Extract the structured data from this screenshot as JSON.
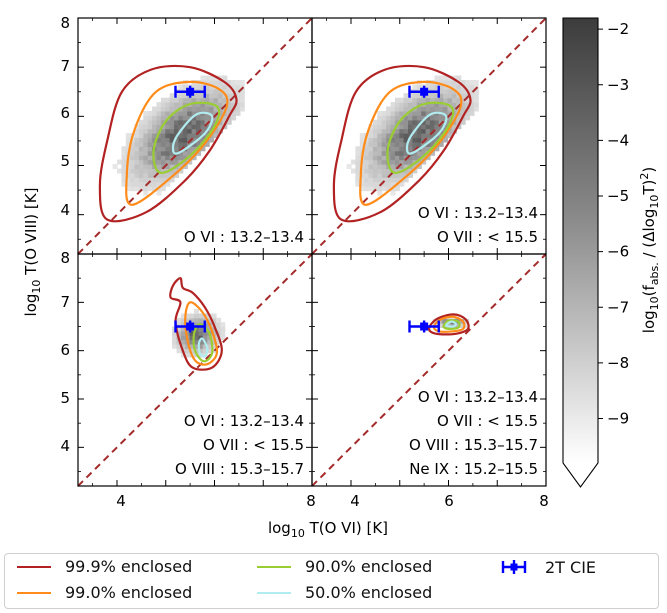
{
  "chart_data": {
    "type": "heatmap",
    "x_label_main": "log",
    "x_label_sub": "10",
    "x_label_rest": " T(O VI) [K]",
    "y_label_main": "log",
    "y_label_sub": "10",
    "y_label_rest": " T(O VIII) [K]",
    "xlim": [
      3.2,
      8.0
    ],
    "ylim": [
      3.2,
      8.0
    ],
    "x_ticks": [
      "4",
      "6",
      "8"
    ],
    "y_ticks": [
      "4",
      "5",
      "6",
      "7",
      "8"
    ],
    "panels": [
      {
        "id": "top-left",
        "annotations": [
          "O VI : 13.2–13.4"
        ],
        "cie_point": {
          "x": 5.5,
          "y": 6.5,
          "xerr": 0.3
        },
        "contours": {
          "c999": [
            [
              3.8,
              3.9
            ],
            [
              4.6,
              4.05
            ],
            [
              5.4,
              4.7
            ],
            [
              5.9,
              5.3
            ],
            [
              6.3,
              6.0
            ],
            [
              6.45,
              6.35
            ],
            [
              6.2,
              6.7
            ],
            [
              5.5,
              7.0
            ],
            [
              4.7,
              6.95
            ],
            [
              4.1,
              6.5
            ],
            [
              3.8,
              5.5
            ],
            [
              3.65,
              4.6
            ]
          ],
          "c990": [
            [
              4.3,
              4.2
            ],
            [
              5.1,
              4.75
            ],
            [
              5.8,
              5.45
            ],
            [
              6.25,
              6.2
            ],
            [
              6.1,
              6.55
            ],
            [
              5.5,
              6.7
            ],
            [
              4.8,
              6.5
            ],
            [
              4.35,
              5.7
            ],
            [
              4.2,
              4.8
            ]
          ],
          "c900": [
            [
              4.9,
              4.85
            ],
            [
              5.5,
              5.2
            ],
            [
              6.0,
              5.8
            ],
            [
              6.05,
              6.2
            ],
            [
              5.5,
              6.25
            ],
            [
              5.0,
              5.9
            ],
            [
              4.75,
              5.3
            ]
          ],
          "c500": [
            [
              5.25,
              5.25
            ],
            [
              5.8,
              5.65
            ],
            [
              5.95,
              6.0
            ],
            [
              5.65,
              6.05
            ],
            [
              5.3,
              5.7
            ],
            [
              5.15,
              5.4
            ]
          ]
        },
        "density": {
          "center": [
            5.3,
            5.6
          ],
          "spread": [
            1.0,
            0.95
          ],
          "rot": 0.7,
          "x_range": [
            3.55,
            6.55
          ],
          "y_range": [
            3.5,
            7.35
          ]
        }
      },
      {
        "id": "top-right",
        "annotations": [
          "O VI : 13.2–13.4",
          "O VII : < 15.5"
        ],
        "cie_point": {
          "x": 5.5,
          "y": 6.5,
          "xerr": 0.3
        },
        "contours": {
          "c999": [
            [
              3.8,
              3.9
            ],
            [
              4.6,
              4.05
            ],
            [
              5.4,
              4.7
            ],
            [
              5.9,
              5.3
            ],
            [
              6.3,
              6.0
            ],
            [
              6.45,
              6.35
            ],
            [
              6.2,
              6.7
            ],
            [
              5.5,
              7.0
            ],
            [
              4.7,
              6.95
            ],
            [
              4.1,
              6.5
            ],
            [
              3.8,
              5.5
            ],
            [
              3.65,
              4.6
            ]
          ],
          "c990": [
            [
              4.3,
              4.2
            ],
            [
              5.1,
              4.75
            ],
            [
              5.8,
              5.45
            ],
            [
              6.25,
              6.2
            ],
            [
              6.1,
              6.55
            ],
            [
              5.5,
              6.7
            ],
            [
              4.8,
              6.5
            ],
            [
              4.35,
              5.7
            ],
            [
              4.2,
              4.8
            ]
          ],
          "c900": [
            [
              4.9,
              4.85
            ],
            [
              5.5,
              5.2
            ],
            [
              6.0,
              5.8
            ],
            [
              6.05,
              6.2
            ],
            [
              5.5,
              6.25
            ],
            [
              5.0,
              5.9
            ],
            [
              4.75,
              5.3
            ]
          ],
          "c500": [
            [
              5.25,
              5.25
            ],
            [
              5.8,
              5.65
            ],
            [
              5.95,
              6.0
            ],
            [
              5.65,
              6.05
            ],
            [
              5.3,
              5.7
            ],
            [
              5.15,
              5.4
            ]
          ]
        },
        "density": {
          "center": [
            5.3,
            5.6
          ],
          "spread": [
            1.0,
            0.95
          ],
          "rot": 0.7,
          "x_range": [
            3.55,
            6.55
          ],
          "y_range": [
            3.5,
            7.35
          ]
        }
      },
      {
        "id": "bottom-left",
        "annotations": [
          "O VI : 13.2–13.4",
          "O VII : < 15.5",
          "O VIII : 15.3–15.7"
        ],
        "cie_point": {
          "x": 5.5,
          "y": 6.5,
          "xerr": 0.3
        },
        "contours": {
          "c999": [
            [
              5.15,
              7.35
            ],
            [
              5.3,
              7.5
            ],
            [
              5.35,
              7.3
            ],
            [
              5.55,
              7.2
            ],
            [
              5.8,
              6.9
            ],
            [
              6.0,
              6.5
            ],
            [
              6.15,
              6.0
            ],
            [
              5.95,
              5.65
            ],
            [
              5.55,
              5.65
            ],
            [
              5.35,
              6.0
            ],
            [
              5.2,
              6.6
            ],
            [
              5.3,
              7.0
            ],
            [
              5.1,
              7.1
            ]
          ],
          "c990": [
            [
              5.5,
              7.0
            ],
            [
              5.75,
              6.8
            ],
            [
              5.95,
              6.4
            ],
            [
              6.05,
              5.95
            ],
            [
              5.85,
              5.72
            ],
            [
              5.6,
              5.8
            ],
            [
              5.45,
              6.2
            ],
            [
              5.4,
              6.7
            ]
          ],
          "c900": [
            [
              5.7,
              6.55
            ],
            [
              5.9,
              6.35
            ],
            [
              5.95,
              5.95
            ],
            [
              5.78,
              5.78
            ],
            [
              5.6,
              6.0
            ],
            [
              5.58,
              6.35
            ]
          ],
          "c500": [
            [
              5.75,
              6.25
            ],
            [
              5.85,
              6.05
            ],
            [
              5.8,
              5.88
            ],
            [
              5.7,
              5.95
            ],
            [
              5.68,
              6.15
            ]
          ]
        },
        "density": {
          "center": [
            5.6,
            6.3
          ],
          "spread": [
            0.35,
            0.55
          ],
          "rot": 0.3,
          "x_range": [
            4.95,
            6.25
          ],
          "y_range": [
            5.6,
            7.65
          ]
        }
      },
      {
        "id": "bottom-right",
        "annotations": [
          "O VI : 13.2–13.4",
          "O VII : < 15.5",
          "O VIII : 15.3–15.7",
          "Ne IX : 15.2–15.5"
        ],
        "cie_point": {
          "x": 5.5,
          "y": 6.5,
          "xerr": 0.3
        },
        "contours": {
          "c999": [
            [
              5.6,
              6.45
            ],
            [
              5.75,
              6.65
            ],
            [
              6.1,
              6.75
            ],
            [
              6.35,
              6.65
            ],
            [
              6.4,
              6.45
            ],
            [
              6.15,
              6.35
            ],
            [
              5.75,
              6.35
            ]
          ],
          "c990": [
            [
              5.7,
              6.5
            ],
            [
              5.85,
              6.65
            ],
            [
              6.1,
              6.7
            ],
            [
              6.3,
              6.6
            ],
            [
              6.3,
              6.45
            ],
            [
              6.1,
              6.4
            ],
            [
              5.8,
              6.4
            ]
          ],
          "c900": [
            [
              5.9,
              6.5
            ],
            [
              6.0,
              6.62
            ],
            [
              6.2,
              6.6
            ],
            [
              6.2,
              6.48
            ],
            [
              6.0,
              6.45
            ]
          ],
          "c500": [
            [
              5.95,
              6.52
            ],
            [
              6.05,
              6.6
            ],
            [
              6.15,
              6.56
            ],
            [
              6.1,
              6.5
            ]
          ]
        },
        "density": {
          "center": [
            6.0,
            6.55
          ],
          "spread": [
            0.25,
            0.14
          ],
          "rot": 0.0,
          "x_range": [
            5.6,
            6.45
          ],
          "y_range": [
            6.3,
            6.85
          ]
        }
      }
    ],
    "colorbar": {
      "label_main": "log",
      "label_sub": "10",
      "label_rest": "(f",
      "label_sub2": "abs.",
      "label_end": " / (Δlog",
      "label_sub3": "10",
      "label_end2": "T)",
      "label_sup": "2",
      "label_close": ")",
      "range": [
        -9.8,
        -1.8
      ],
      "ticks": [
        "−2",
        "−3",
        "−4",
        "−5",
        "−6",
        "−7",
        "−8",
        "−9"
      ],
      "tick_values": [
        -2,
        -3,
        -4,
        -5,
        -6,
        -7,
        -8,
        -9
      ],
      "extend": "min"
    },
    "legend": {
      "placement": "bottom",
      "entries": [
        {
          "label": "99.9% enclosed",
          "color": "#b22222",
          "kind": "line"
        },
        {
          "label": "99.0% enclosed",
          "color": "#ff8c1a",
          "kind": "line"
        },
        {
          "label": "90.0% enclosed",
          "color": "#9acd32",
          "kind": "line"
        },
        {
          "label": "50.0% enclosed",
          "color": "#b0ecf0",
          "kind": "line"
        },
        {
          "label": "2T CIE",
          "color": "#0000ff",
          "kind": "errorbar"
        }
      ]
    },
    "diagonal_color": "#a52a2a"
  }
}
